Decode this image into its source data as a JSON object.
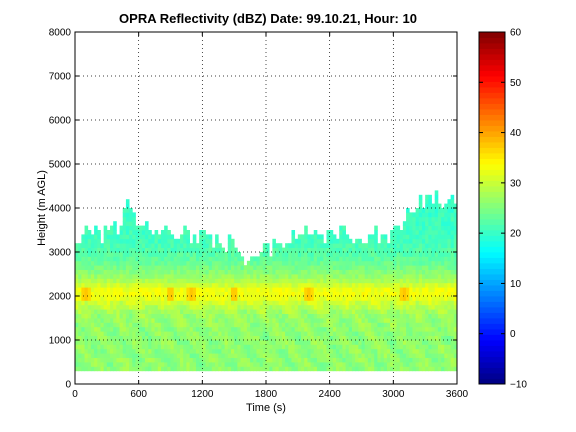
{
  "chart_data": {
    "type": "heatmap",
    "title": "OPRA Reflectivity (dBZ)  Date: 99.10.21, Hour: 10",
    "xlabel": "Time (s)",
    "ylabel": "Height (m AGL)",
    "xlim": [
      0,
      3600
    ],
    "ylim": [
      0,
      8000
    ],
    "xticks": [
      0,
      600,
      1200,
      1800,
      2400,
      3000,
      3600
    ],
    "yticks": [
      0,
      1000,
      2000,
      3000,
      4000,
      5000,
      6000,
      7000,
      8000
    ],
    "grid": true,
    "colorbar": {
      "min": -10,
      "max": 60,
      "ticks": [
        -10,
        0,
        10,
        20,
        30,
        40,
        50,
        60
      ],
      "colormap": "jet"
    },
    "echo_bottom_m": 300,
    "echo_top_profile": {
      "time_s": [
        0,
        200,
        400,
        500,
        600,
        800,
        1000,
        1200,
        1400,
        1500,
        1600,
        1700,
        1800,
        2000,
        2200,
        2400,
        2600,
        2800,
        3000,
        3200,
        3400,
        3600
      ],
      "top_m": [
        3400,
        3300,
        3500,
        4000,
        3500,
        3300,
        3400,
        3300,
        3200,
        3100,
        2900,
        2900,
        3000,
        3300,
        3400,
        3300,
        3400,
        3400,
        3400,
        4000,
        4200,
        4000
      ]
    },
    "reflectivity_profile": {
      "height_m": [
        300,
        800,
        1200,
        1600,
        1900,
        2000,
        2100,
        2200,
        2300,
        2500,
        2800,
        3200,
        4000
      ],
      "dbz": [
        26,
        26,
        26,
        27,
        31,
        33,
        33,
        32,
        29,
        26,
        23,
        21,
        20
      ]
    },
    "bright_band": {
      "center_height_m": 2050,
      "core_dbz_max": 38,
      "core_times_s": [
        100,
        900,
        1100,
        1500,
        2200,
        3100
      ]
    }
  }
}
